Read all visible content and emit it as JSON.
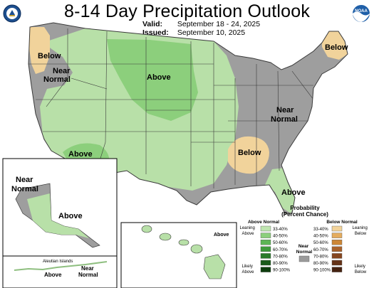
{
  "title": "8-14 Day Precipitation Outlook",
  "valid": {
    "label": "Valid:",
    "value": "September 18 - 24, 2025"
  },
  "issued": {
    "label": "Issued:",
    "value": "September 10, 2025"
  },
  "logos": [
    "doc-seal-logo",
    "noaa-logo"
  ],
  "noaa_text": "NOAA",
  "map_labels": {
    "below_west": "Below",
    "near_normal_west": "Near\nNormal",
    "above_plains": "Above",
    "above_southwest": "Above",
    "near_normal_east": "Near\nNormal",
    "below_southeast": "Below",
    "below_maine": "Below",
    "above_florida": "Above",
    "alaska_near_normal": "Near\nNormal",
    "alaska_above": "Above",
    "aleutian_title": "Aleutian Islands",
    "aleutian_above": "Above",
    "aleutian_near_normal": "Near\nNormal",
    "hawaii_above": "Above"
  },
  "legend": {
    "title": "Probability",
    "subtitle": "(Percent Chance)",
    "above_header": "Above Normal",
    "near_header": "Near\nNormal",
    "below_header": "Below Normal",
    "leaning_above": "Leaning\nAbove",
    "likely_above": "Likely\nAbove",
    "leaning_below": "Leaning\nBelow",
    "likely_below": "Likely\nBelow",
    "ranges": [
      "33-40%",
      "40-50%",
      "50-60%",
      "60-70%",
      "70-80%",
      "80-90%",
      "90-100%"
    ],
    "above_colors": [
      "#bfe6b0",
      "#8ccf7c",
      "#5db555",
      "#3e9a3b",
      "#2a7a2a",
      "#1b5b1b",
      "#0e3d0e"
    ],
    "below_colors": [
      "#f2d39a",
      "#e4ac5e",
      "#cc8636",
      "#a8612a",
      "#86461f",
      "#653217",
      "#452110"
    ],
    "near_color": "#9b9b9b"
  },
  "map_colors": {
    "near_normal": "#9e9e9e",
    "above_33_40": "#b8e0a8",
    "above_40_50": "#8ccf7c",
    "below_33_40": "#f1d39b",
    "boundary": "#3a3a3a"
  }
}
